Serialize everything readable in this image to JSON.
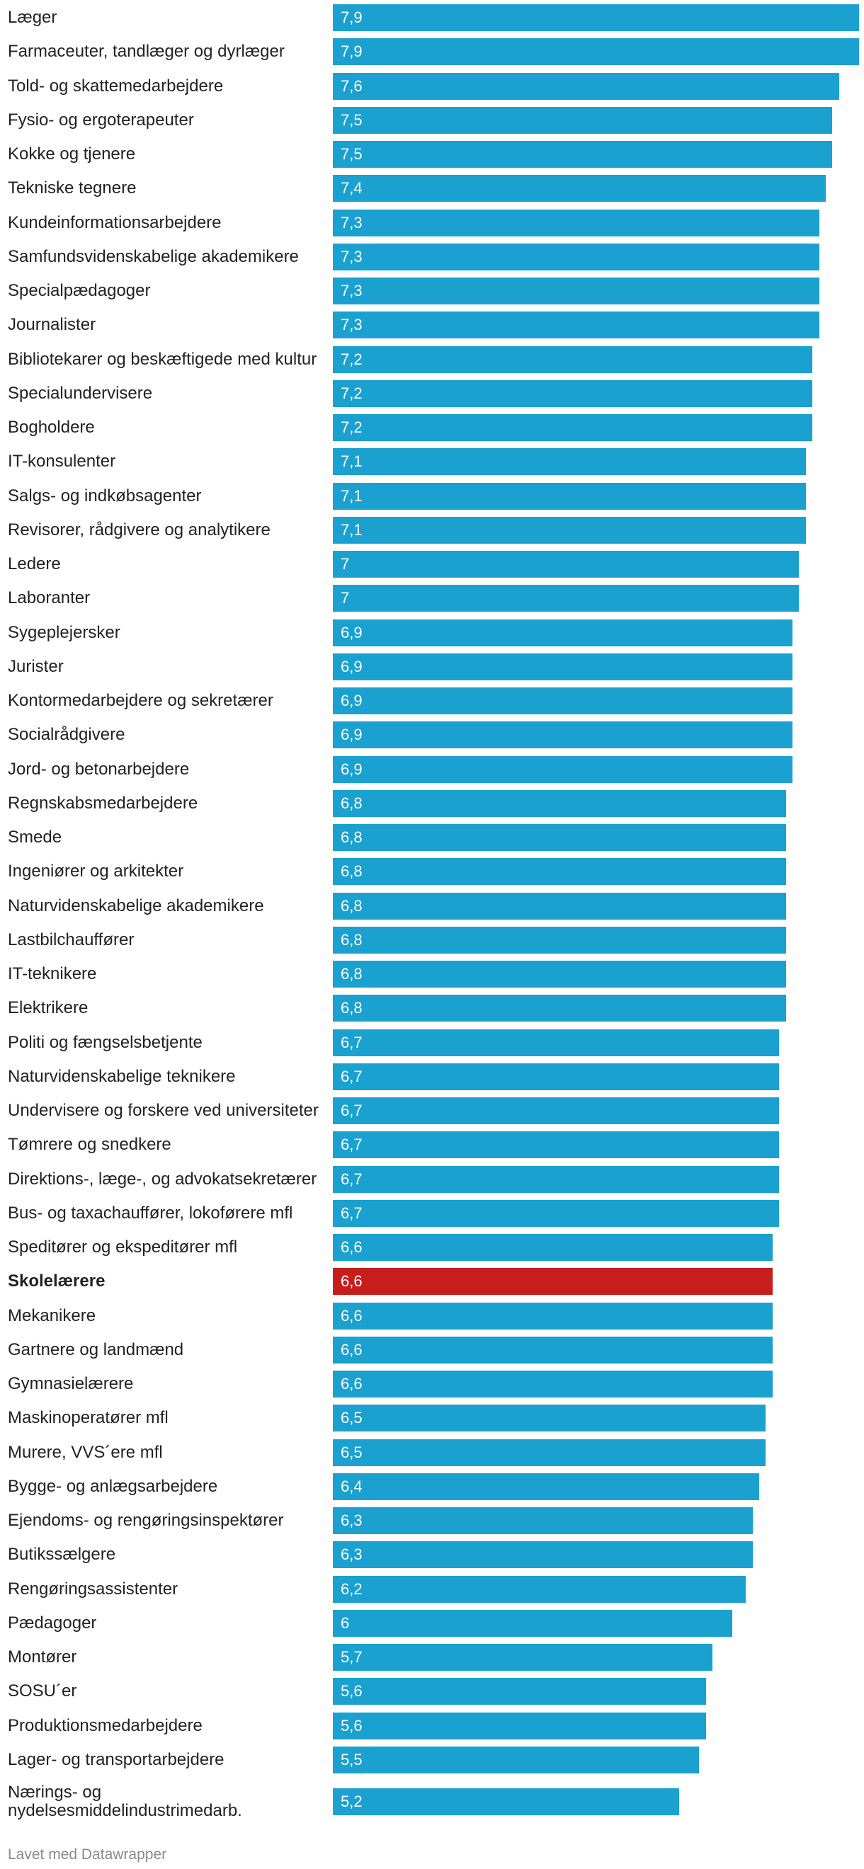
{
  "chart_data": {
    "type": "bar",
    "orientation": "horizontal",
    "xlim": [
      0,
      7.9
    ],
    "highlight_index": 37,
    "colors": {
      "bar": "#1aa1d0",
      "highlight": "#c71e1d",
      "label": "#222222",
      "value": "#ffffff",
      "footer": "#8a8a8a"
    },
    "categories": [
      "Læger",
      "Farmaceuter, tandlæger og dyrlæger",
      "Told- og skattemedarbejdere",
      "Fysio- og ergoterapeuter",
      "Kokke og tjenere",
      "Tekniske tegnere",
      "Kundeinformationsarbejdere",
      "Samfundsvidenskabelige akademikere",
      "Specialpædagoger",
      "Journalister",
      "Bibliotekarer og beskæftigede med kultur",
      "Specialundervisere",
      "Bogholdere",
      "IT-konsulenter",
      "Salgs- og indkøbsagenter",
      "Revisorer, rådgivere og analytikere",
      "Ledere",
      "Laboranter",
      "Sygeplejersker",
      "Jurister",
      "Kontormedarbejdere og sekretærer",
      "Socialrådgivere",
      "Jord- og betonarbejdere",
      "Regnskabsmedarbejdere",
      "Smede",
      "Ingeniører og arkitekter",
      "Naturvidenskabelige akademikere",
      "Lastbilchauffører",
      "IT-teknikere",
      "Elektrikere",
      "Politi og fængselsbetjente",
      "Naturvidenskabelige teknikere",
      "Undervisere og forskere ved universiteter",
      "Tømrere og snedkere",
      "Direktions-, læge-, og advokatsekretærer",
      "Bus- og taxachauffører, lokoførere mfl",
      "Speditører og ekspeditører mfl",
      "Skolelærere",
      "Mekanikere",
      "Gartnere og landmænd",
      "Gymnasielærere",
      "Maskinoperatører mfl",
      "Murere, VVS´ere mfl",
      "Bygge- og anlægsarbejdere",
      "Ejendoms- og rengøringsinspektører",
      "Butikssælgere",
      "Rengøringsassistenter",
      "Pædagoger",
      "Montører",
      "SOSU´er",
      "Produktionsmedarbejdere",
      "Lager- og transportarbejdere",
      "Nærings- og nydelsesmiddelindustrimedarb."
    ],
    "values": [
      7.9,
      7.9,
      7.6,
      7.5,
      7.5,
      7.4,
      7.3,
      7.3,
      7.3,
      7.3,
      7.2,
      7.2,
      7.2,
      7.1,
      7.1,
      7.1,
      7,
      7,
      6.9,
      6.9,
      6.9,
      6.9,
      6.9,
      6.8,
      6.8,
      6.8,
      6.8,
      6.8,
      6.8,
      6.8,
      6.7,
      6.7,
      6.7,
      6.7,
      6.7,
      6.7,
      6.6,
      6.6,
      6.6,
      6.6,
      6.6,
      6.5,
      6.5,
      6.4,
      6.3,
      6.3,
      6.2,
      6,
      5.7,
      5.6,
      5.6,
      5.5,
      5.2
    ],
    "value_labels": [
      "7,9",
      "7,9",
      "7,6",
      "7,5",
      "7,5",
      "7,4",
      "7,3",
      "7,3",
      "7,3",
      "7,3",
      "7,2",
      "7,2",
      "7,2",
      "7,1",
      "7,1",
      "7,1",
      "7",
      "7",
      "6,9",
      "6,9",
      "6,9",
      "6,9",
      "6,9",
      "6,8",
      "6,8",
      "6,8",
      "6,8",
      "6,8",
      "6,8",
      "6,8",
      "6,7",
      "6,7",
      "6,7",
      "6,7",
      "6,7",
      "6,7",
      "6,6",
      "6,6",
      "6,6",
      "6,6",
      "6,6",
      "6,5",
      "6,5",
      "6,4",
      "6,3",
      "6,3",
      "6,2",
      "6",
      "5,7",
      "5,6",
      "5,6",
      "5,5",
      "5,2"
    ]
  },
  "footer": {
    "credit": "Lavet med Datawrapper"
  }
}
